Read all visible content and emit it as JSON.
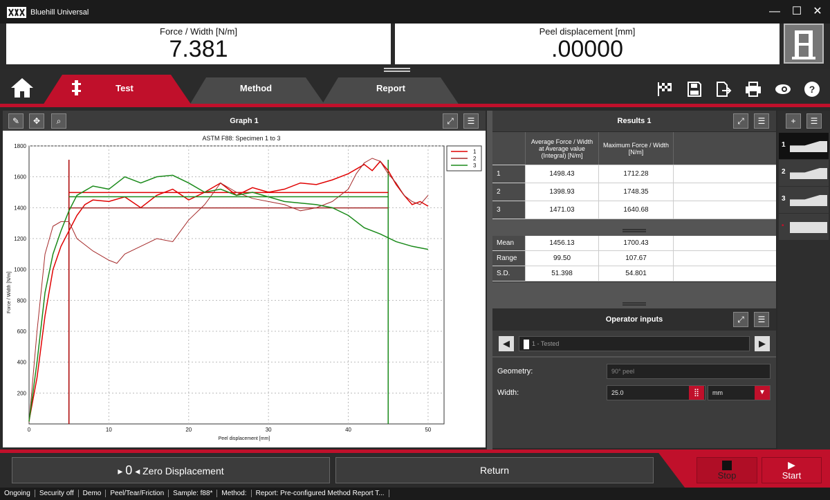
{
  "app": {
    "title": "Bluehill Universal"
  },
  "readouts": [
    {
      "label": "Force / Width [N/m]",
      "value": "7.381"
    },
    {
      "label": "Peel displacement [mm]",
      "value": ".00000"
    }
  ],
  "tabs": [
    {
      "label": "Test",
      "active": true
    },
    {
      "label": "Method",
      "active": false
    },
    {
      "label": "Report",
      "active": false
    }
  ],
  "graph": {
    "panel_title": "Graph 1",
    "chart_title": "ASTM F88: Specimen 1 to 3"
  },
  "chart_data": {
    "type": "line",
    "title": "ASTM F88: Specimen 1 to 3",
    "xlabel": "Peel displacement [mm]",
    "ylabel": "Force / Width [N/m]",
    "xlim": [
      0,
      52
    ],
    "ylim": [
      0,
      1800
    ],
    "xticks": [
      0,
      10,
      20,
      30,
      40,
      50
    ],
    "yticks": [
      200,
      400,
      600,
      800,
      1000,
      1200,
      1400,
      1600,
      1800
    ],
    "grid": true,
    "legend": "top-right",
    "series": [
      {
        "name": "1",
        "color": "#e00000",
        "x": [
          0,
          1,
          2,
          3,
          4,
          5,
          6,
          7,
          8,
          10,
          12,
          14,
          16,
          18,
          20,
          22,
          24,
          26,
          28,
          30,
          32,
          34,
          36,
          38,
          40,
          42,
          43,
          44,
          45,
          46,
          47,
          48,
          49,
          50
        ],
        "y": [
          20,
          300,
          700,
          1000,
          1150,
          1250,
          1350,
          1420,
          1450,
          1440,
          1470,
          1400,
          1480,
          1520,
          1450,
          1500,
          1560,
          1480,
          1530,
          1500,
          1520,
          1560,
          1550,
          1580,
          1620,
          1680,
          1640,
          1700,
          1640,
          1550,
          1480,
          1420,
          1440,
          1410
        ],
        "mean_line": 1498.43
      },
      {
        "name": "2",
        "color": "#a52a2a",
        "x": [
          0,
          1,
          2,
          3,
          4,
          5,
          6,
          8,
          10,
          11,
          12,
          14,
          16,
          18,
          20,
          22,
          24,
          26,
          28,
          30,
          32,
          34,
          36,
          38,
          40,
          41,
          42,
          43,
          44,
          45,
          46,
          47,
          48,
          49,
          50
        ],
        "y": [
          10,
          600,
          1100,
          1280,
          1310,
          1310,
          1200,
          1120,
          1060,
          1040,
          1100,
          1150,
          1200,
          1180,
          1320,
          1420,
          1560,
          1500,
          1460,
          1440,
          1420,
          1380,
          1400,
          1440,
          1520,
          1620,
          1690,
          1720,
          1700,
          1620,
          1560,
          1480,
          1440,
          1420,
          1480
        ],
        "mean_line": 1398.93
      },
      {
        "name": "3",
        "color": "#1a8a1a",
        "x": [
          0,
          1,
          2,
          3,
          4,
          5,
          6,
          8,
          10,
          12,
          14,
          16,
          18,
          20,
          22,
          24,
          26,
          28,
          30,
          32,
          34,
          36,
          38,
          40,
          42,
          44,
          46,
          48,
          50
        ],
        "y": [
          15,
          400,
          850,
          1100,
          1250,
          1380,
          1480,
          1540,
          1520,
          1600,
          1560,
          1600,
          1610,
          1560,
          1500,
          1520,
          1480,
          1500,
          1470,
          1440,
          1430,
          1420,
          1400,
          1350,
          1270,
          1230,
          1180,
          1150,
          1130
        ],
        "mean_line": 1471.03
      }
    ]
  },
  "results": {
    "panel_title": "Results 1",
    "headers": [
      "",
      "Average Force / Width at Average value (Integral) [N/m]",
      "Maximum Force / Width [N/m]"
    ],
    "rows": [
      {
        "idx": "1",
        "avg": "1498.43",
        "max": "1712.28"
      },
      {
        "idx": "2",
        "avg": "1398.93",
        "max": "1748.35"
      },
      {
        "idx": "3",
        "avg": "1471.03",
        "max": "1640.68"
      }
    ],
    "stats": [
      {
        "idx": "Mean",
        "avg": "1456.13",
        "max": "1700.43"
      },
      {
        "idx": "Range",
        "avg": "99.50",
        "max": "107.67"
      },
      {
        "idx": "S.D.",
        "avg": "51.398",
        "max": "54.801"
      }
    ]
  },
  "operator": {
    "panel_title": "Operator inputs",
    "specimen": "1 - Tested",
    "geometry_label": "Geometry:",
    "geometry_value": "90° peel",
    "width_label": "Width:",
    "width_value": "25.0",
    "width_unit": "mm"
  },
  "specimens": [
    {
      "num": "1"
    },
    {
      "num": "2"
    },
    {
      "num": "3"
    },
    {
      "num": "•"
    }
  ],
  "bottom": {
    "zero_value": "0",
    "zero_label": "Zero Displacement",
    "return_label": "Return",
    "stop_label": "Stop",
    "start_label": "Start"
  },
  "statusbar": [
    "Ongoing",
    "Security off",
    "Demo",
    "Peel/Tear/Friction",
    "Sample: f88*",
    "Method:",
    "Report: Pre-configured Method Report T..."
  ],
  "colors": {
    "accent": "#c0102b",
    "dark": "#2a2a2a",
    "panel": "#3c3c3c"
  }
}
